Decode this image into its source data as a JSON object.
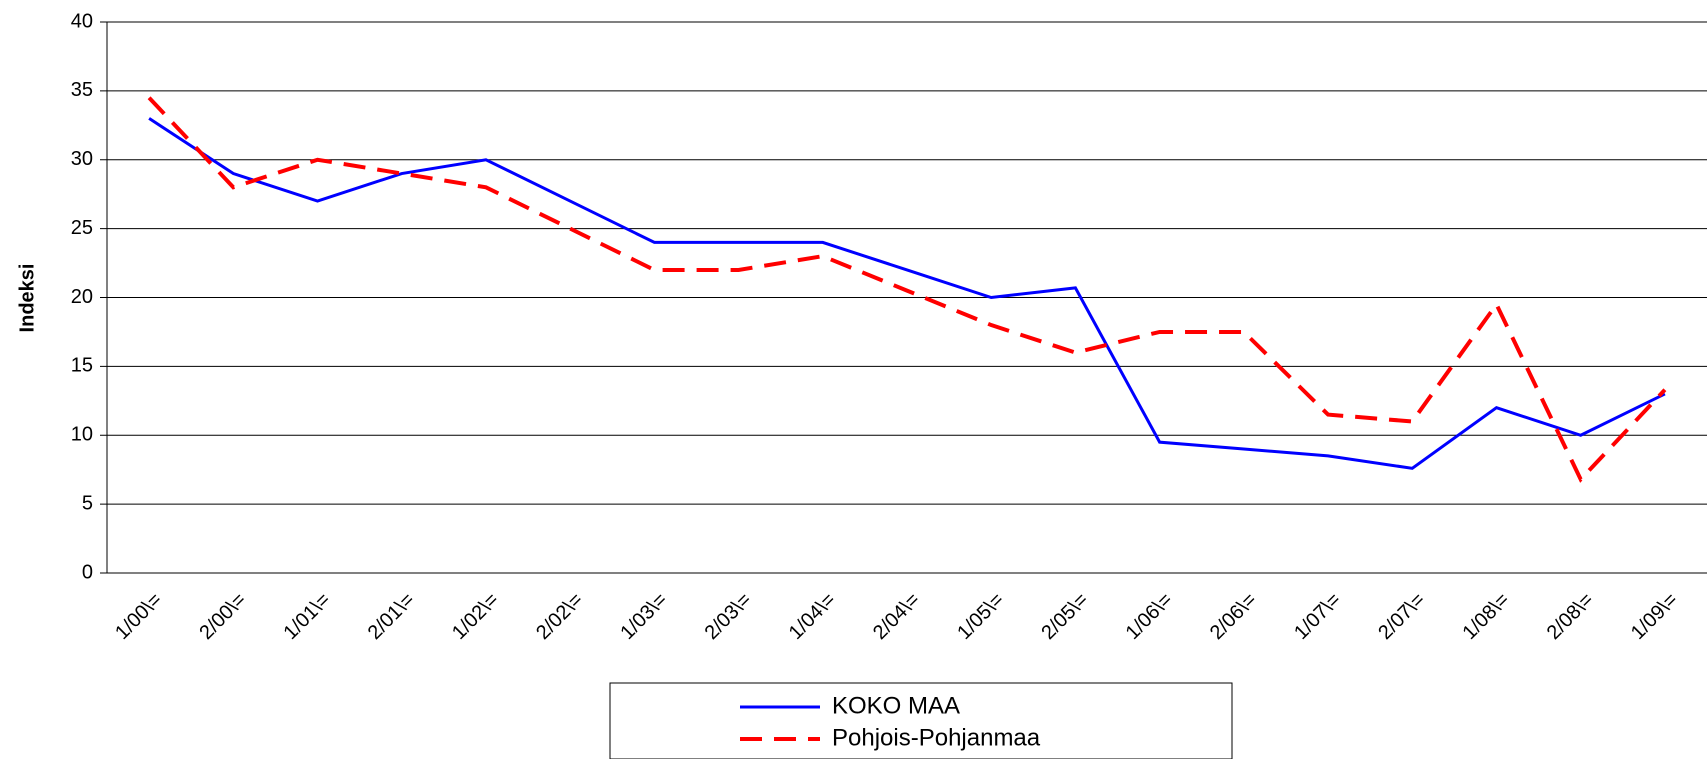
{
  "chart_data": {
    "type": "line",
    "y_label": "Indeksi",
    "categories": [
      "1/00\\=",
      "2/00\\=",
      "1/01\\=",
      "2/01\\=",
      "1/02\\=",
      "2/02\\=",
      "1/03\\=",
      "2/03\\=",
      "1/04\\=",
      "2/04\\=",
      "1/05\\=",
      "2/05\\=",
      "1/06\\=",
      "2/06\\=",
      "1/07\\=",
      "2/07\\=",
      "1/08\\=",
      "2/08\\=",
      "1/09\\="
    ],
    "series": [
      {
        "name": "KOKO MAA",
        "color": "#0000ff",
        "dashed": false,
        "values": [
          33,
          29,
          27,
          29,
          30,
          27,
          24,
          24,
          24,
          22,
          20,
          20.7,
          9.5,
          9,
          8.5,
          7.6,
          12,
          10,
          13
        ]
      },
      {
        "name": "Pohjois-Pohjanmaa",
        "color": "#ff0000",
        "dashed": true,
        "values": [
          34.5,
          28,
          30,
          29,
          28,
          25,
          22,
          22,
          23,
          20.5,
          18,
          16,
          17.5,
          17.5,
          11.5,
          11,
          19.5,
          6.8,
          13.3
        ]
      }
    ],
    "ylim": [
      0,
      40
    ],
    "yticks": [
      0,
      5,
      10,
      15,
      20,
      25,
      30,
      35,
      40
    ],
    "grid": true
  }
}
